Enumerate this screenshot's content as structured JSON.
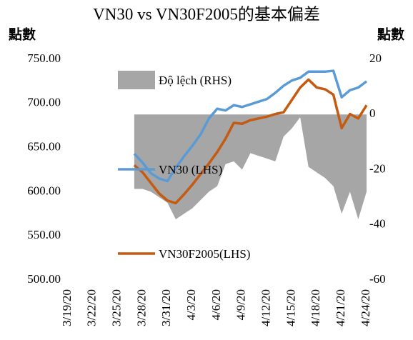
{
  "chart_data": {
    "type": "line",
    "title": "VN30 vs VN30F2005的基本偏差",
    "y_label": "點數",
    "y2_label": "點數",
    "categories": [
      "3/19/20",
      null,
      null,
      "3/22/20",
      null,
      null,
      "3/25/20",
      null,
      null,
      "3/28/20",
      null,
      null,
      "3/31/20",
      null,
      null,
      "4/3/20",
      null,
      null,
      "4/6/20",
      null,
      null,
      "4/9/20",
      null,
      null,
      "4/12/20",
      null,
      null,
      "4/15/20",
      null,
      null,
      "4/18/20",
      null,
      null,
      "4/21/20",
      null,
      null,
      "4/24/20"
    ],
    "series": [
      {
        "name": "Độ lệch (RHS)",
        "type": "area",
        "axis": "y2",
        "color": "#a6a6a6",
        "values": [
          null,
          null,
          null,
          null,
          null,
          null,
          null,
          null,
          -27,
          -27,
          -28,
          -30,
          -32,
          -38,
          -36,
          -34,
          -31,
          -28,
          -26,
          -18,
          -17,
          -20,
          -14,
          -15,
          -16,
          -17,
          -8,
          -5,
          -1,
          -19,
          -21,
          -23,
          -26,
          -36,
          -28,
          -38,
          -28
        ]
      },
      {
        "name": "VN30 (LHS)",
        "type": "line",
        "axis": "y",
        "color": "#5b9bd5",
        "values": [
          null,
          null,
          null,
          null,
          null,
          null,
          null,
          null,
          643,
          633,
          621,
          615,
          612,
          627,
          640,
          652,
          665,
          683,
          694,
          692,
          698,
          696,
          699,
          702,
          705,
          712,
          720,
          726,
          729,
          736,
          736,
          736,
          737,
          707,
          715,
          718,
          725
        ]
      },
      {
        "name": "VN30F2005(LHS)",
        "type": "line",
        "axis": "y",
        "color": "#c55a11",
        "values": [
          null,
          null,
          null,
          null,
          null,
          null,
          null,
          null,
          630,
          622,
          610,
          598,
          590,
          587,
          597,
          608,
          620,
          632,
          645,
          660,
          678,
          677,
          681,
          683,
          685,
          688,
          690,
          704,
          718,
          727,
          718,
          716,
          710,
          672,
          688,
          683,
          698
        ]
      }
    ],
    "ylim": [
      500,
      750
    ],
    "yticks": [
      {
        "value": 500,
        "label": "500.00"
      },
      {
        "value": 550,
        "label": "550.00"
      },
      {
        "value": 600,
        "label": "600.00"
      },
      {
        "value": 650,
        "label": "650.00"
      },
      {
        "value": 700,
        "label": "700.00"
      },
      {
        "value": 750,
        "label": "750.00"
      }
    ],
    "y2lim": [
      -60,
      20
    ],
    "y2ticks": [
      -60,
      -40,
      -20,
      0,
      20
    ]
  }
}
